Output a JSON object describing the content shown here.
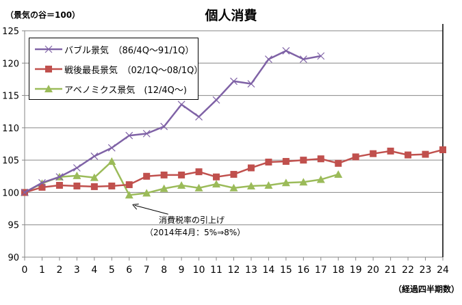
{
  "chart_data": {
    "type": "line",
    "title": "個人消費",
    "ylabel": "（景気の谷＝100）",
    "xlabel": "（経過四半期数）",
    "xlim": [
      0,
      24
    ],
    "ylim": [
      90,
      125
    ],
    "yticks": [
      90,
      95,
      100,
      105,
      110,
      115,
      120,
      125
    ],
    "xticks": [
      0,
      1,
      2,
      3,
      4,
      5,
      6,
      7,
      8,
      9,
      10,
      11,
      12,
      13,
      14,
      15,
      16,
      17,
      18,
      19,
      20,
      21,
      22,
      23,
      24
    ],
    "grid": true,
    "legend_position": "top-left",
    "series": [
      {
        "name": "バブル景気　（86/4Q～91/1Q）",
        "color": "#7f62a6",
        "marker": "x",
        "values": [
          100,
          101.5,
          102.4,
          103.8,
          105.6,
          106.9,
          108.8,
          109.1,
          110.2,
          113.6,
          111.7,
          114.3,
          117.2,
          116.8,
          120.6,
          121.9,
          120.6,
          121.1
        ]
      },
      {
        "name": "戦後最長景気　（02/1Q～08/1Q）",
        "color": "#c0504d",
        "marker": "square",
        "values": [
          100,
          100.8,
          101.1,
          101.0,
          100.9,
          101.0,
          101.2,
          102.5,
          102.7,
          102.7,
          103.2,
          102.4,
          102.8,
          103.8,
          104.7,
          104.8,
          105.0,
          105.2,
          104.5,
          105.5,
          106.0,
          106.4,
          105.8,
          105.9,
          106.6
        ]
      },
      {
        "name": "アベノミクス景気　(12/4Q～)",
        "color": "#9bbb59",
        "marker": "triangle",
        "values": [
          100,
          101.4,
          102.4,
          102.6,
          102.3,
          104.8,
          99.6,
          99.9,
          100.6,
          101.1,
          100.7,
          101.3,
          100.7,
          101.0,
          101.1,
          101.5,
          101.6,
          102.0,
          102.8
        ]
      }
    ],
    "annotations": [
      {
        "line1": "消費税率の引上げ",
        "line2": "（2014年4月：5%⇒8%）",
        "target_x": 6
      }
    ]
  }
}
